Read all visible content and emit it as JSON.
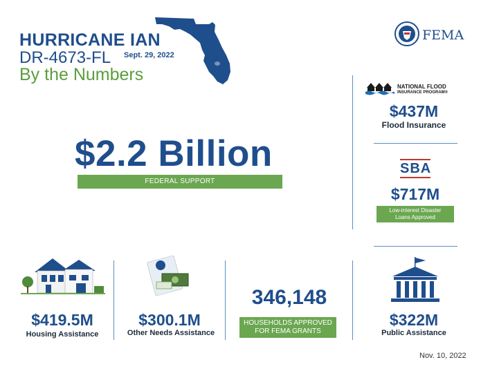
{
  "header": {
    "title_line1": "HURRICANE IAN",
    "title_line2": "DR-4673-FL",
    "date": "Sept. 29, 2022",
    "title_line3": "By the Numbers"
  },
  "logo": {
    "fema": "FEMA",
    "nfip_line1": "NATIONAL FLOOD",
    "nfip_line2": "INSURANCE PROGRAM®",
    "sba": "SBA"
  },
  "total": {
    "amount": "$2.2 Billion",
    "label": "FEDERAL SUPPORT"
  },
  "flood": {
    "amount": "$437M",
    "label": "Flood Insurance"
  },
  "sba_loans": {
    "amount": "$717M",
    "label_line1": "Low-interest Disaster",
    "label_line2": "Loans Approved"
  },
  "housing": {
    "amount": "$419.5M",
    "label": "Housing Assistance"
  },
  "other_needs": {
    "amount": "$300.1M",
    "label": "Other Needs Assistance"
  },
  "households": {
    "amount": "346,148",
    "label_line1": "HOUSEHOLDS APPROVED",
    "label_line2": "FOR FEMA GRANTS"
  },
  "public": {
    "amount": "$322M",
    "label": "Public Assistance"
  },
  "footer": {
    "date": "Nov. 10, 2022"
  },
  "colors": {
    "navy": "#1f4e8c",
    "green": "#6ba750",
    "rule": "#5a8fbf"
  },
  "icons": [
    "florida-map-icon",
    "fema-seal-icon",
    "nfip-logo-icon",
    "sba-logo-icon",
    "house-icon",
    "assistance-form-icon",
    "government-building-icon"
  ]
}
